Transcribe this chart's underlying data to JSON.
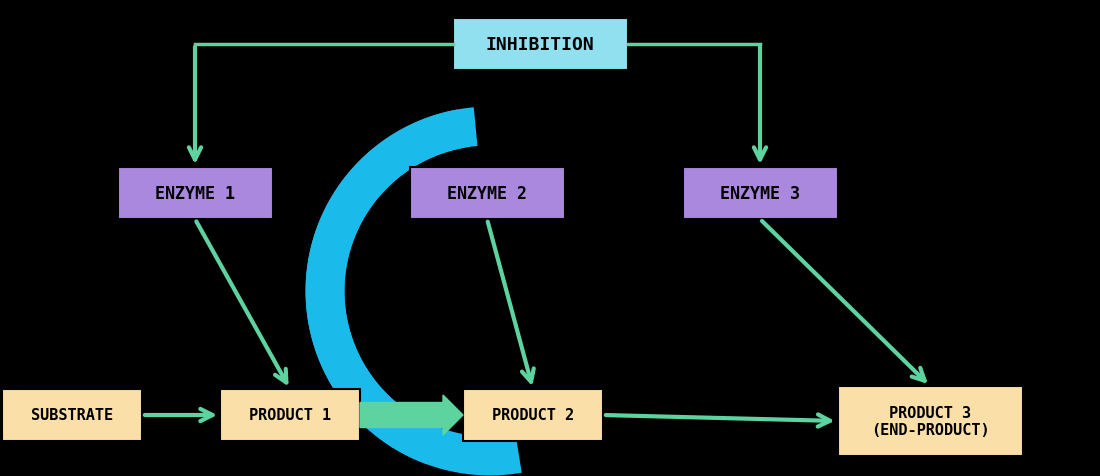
{
  "background_color": "#000000",
  "arrow_color": "#5DD4A0",
  "circular_arrow_color": "#1ABAEB",
  "inhibition_box_color": "#90E0F0",
  "enzyme_box_color": "#AA88DD",
  "substrate_box_color": "#FAE0A8",
  "product_box_color": "#FAE0A8",
  "text_color": "#000000",
  "inhibition_text": "INHIBITION",
  "enzyme1_text": "ENZYME 1",
  "enzyme2_text": "ENZYME 2",
  "enzyme3_text": "ENZYME 3",
  "substrate_text": "SUBSTRATE",
  "product1_text": "PRODUCT 1",
  "product2_text": "PRODUCT 2",
  "product3_text": "PRODUCT 3\n(END-PRODUCT)",
  "font_size_main": 12,
  "font_size_inh": 13,
  "font_size_product3": 11
}
